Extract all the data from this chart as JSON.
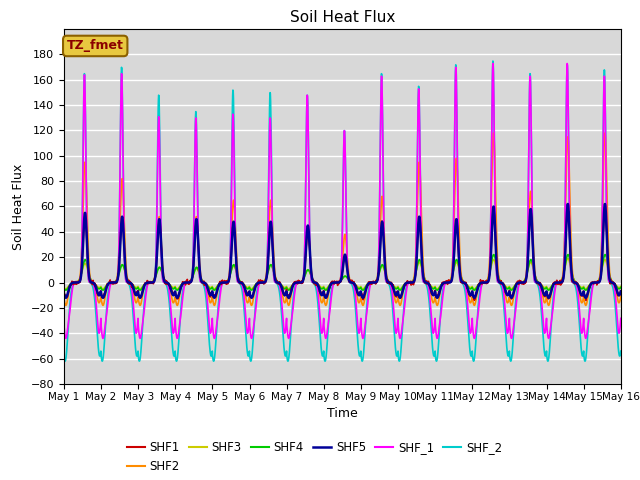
{
  "title": "Soil Heat Flux",
  "xlabel": "Time",
  "ylabel": "Soil Heat Flux",
  "xlim_days": [
    0,
    15
  ],
  "ylim": [
    -80,
    200
  ],
  "yticks": [
    -80,
    -60,
    -40,
    -20,
    0,
    20,
    40,
    60,
    80,
    100,
    120,
    140,
    160,
    180
  ],
  "bg_color": "#d8d8d8",
  "legend_label": "TZ_fmet",
  "legend_box_facecolor": "#e8c840",
  "legend_box_edgecolor": "#8b6000",
  "legend_text_color": "#8b0000",
  "series": {
    "SHF1": {
      "color": "#cc0000",
      "lw": 1.2
    },
    "SHF2": {
      "color": "#ff8c00",
      "lw": 1.2
    },
    "SHF3": {
      "color": "#cccc00",
      "lw": 1.2
    },
    "SHF4": {
      "color": "#00cc00",
      "lw": 1.2
    },
    "SHF5": {
      "color": "#000099",
      "lw": 1.8
    },
    "SHF_1": {
      "color": "#ff00ff",
      "lw": 1.2
    },
    "SHF_2": {
      "color": "#00cccc",
      "lw": 1.2
    }
  },
  "xtick_labels": [
    "May 1",
    "May 2",
    "May 3",
    "May 4",
    "May 5",
    "May 6",
    "May 7",
    "May 8",
    "May 9",
    "May 10",
    "May 11",
    "May 12",
    "May 13",
    "May 14",
    "May 15",
    "May 16"
  ],
  "xtick_positions": [
    0,
    1,
    2,
    3,
    4,
    5,
    6,
    7,
    8,
    9,
    10,
    11,
    12,
    13,
    14,
    15
  ],
  "figsize": [
    6.4,
    4.8
  ],
  "dpi": 100
}
